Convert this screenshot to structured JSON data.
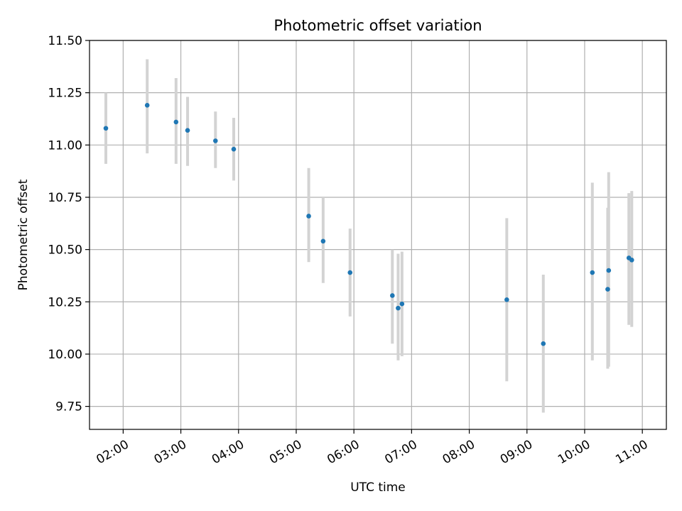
{
  "chart_data": {
    "type": "scatter",
    "title": "Photometric offset variation",
    "xlabel": "UTC time",
    "ylabel": "Photometric offset",
    "ylim": [
      9.64,
      11.5
    ],
    "xlim": [
      "01:25",
      "11:25"
    ],
    "grid": true,
    "y_ticks": [
      "9.75",
      "10.00",
      "10.25",
      "10.50",
      "10.75",
      "11.00",
      "11.25",
      "11.50"
    ],
    "x_ticks": [
      "02:00",
      "03:00",
      "04:00",
      "05:00",
      "06:00",
      "07:00",
      "08:00",
      "09:00",
      "10:00",
      "11:00"
    ],
    "series": [
      {
        "marker_color": "#1f77b4",
        "errorbar_color": "#d3d3d3",
        "points": [
          {
            "x": "01:42",
            "y": 11.08,
            "ylow": 10.91,
            "yhigh": 11.25
          },
          {
            "x": "02:25",
            "y": 11.19,
            "ylow": 10.96,
            "yhigh": 11.41
          },
          {
            "x": "02:55",
            "y": 11.11,
            "ylow": 10.91,
            "yhigh": 11.32
          },
          {
            "x": "03:07",
            "y": 11.07,
            "ylow": 10.9,
            "yhigh": 11.23
          },
          {
            "x": "03:36",
            "y": 11.02,
            "ylow": 10.89,
            "yhigh": 11.16
          },
          {
            "x": "03:55",
            "y": 10.98,
            "ylow": 10.83,
            "yhigh": 11.13
          },
          {
            "x": "05:13",
            "y": 10.66,
            "ylow": 10.44,
            "yhigh": 10.89
          },
          {
            "x": "05:28",
            "y": 10.54,
            "ylow": 10.34,
            "yhigh": 10.75
          },
          {
            "x": "05:56",
            "y": 10.39,
            "ylow": 10.18,
            "yhigh": 10.6
          },
          {
            "x": "06:40",
            "y": 10.28,
            "ylow": 10.05,
            "yhigh": 10.5
          },
          {
            "x": "06:46",
            "y": 10.22,
            "ylow": 9.97,
            "yhigh": 10.48
          },
          {
            "x": "06:50",
            "y": 10.24,
            "ylow": 9.99,
            "yhigh": 10.49
          },
          {
            "x": "08:39",
            "y": 10.26,
            "ylow": 9.87,
            "yhigh": 10.65
          },
          {
            "x": "09:17",
            "y": 10.05,
            "ylow": 9.72,
            "yhigh": 10.38
          },
          {
            "x": "10:08",
            "y": 10.39,
            "ylow": 9.97,
            "yhigh": 10.82
          },
          {
            "x": "10:24",
            "y": 10.31,
            "ylow": 9.93,
            "yhigh": 10.7
          },
          {
            "x": "10:25",
            "y": 10.4,
            "ylow": 9.94,
            "yhigh": 10.87
          },
          {
            "x": "10:46",
            "y": 10.46,
            "ylow": 10.14,
            "yhigh": 10.77
          },
          {
            "x": "10:49",
            "y": 10.45,
            "ylow": 10.13,
            "yhigh": 10.78
          }
        ]
      }
    ]
  }
}
